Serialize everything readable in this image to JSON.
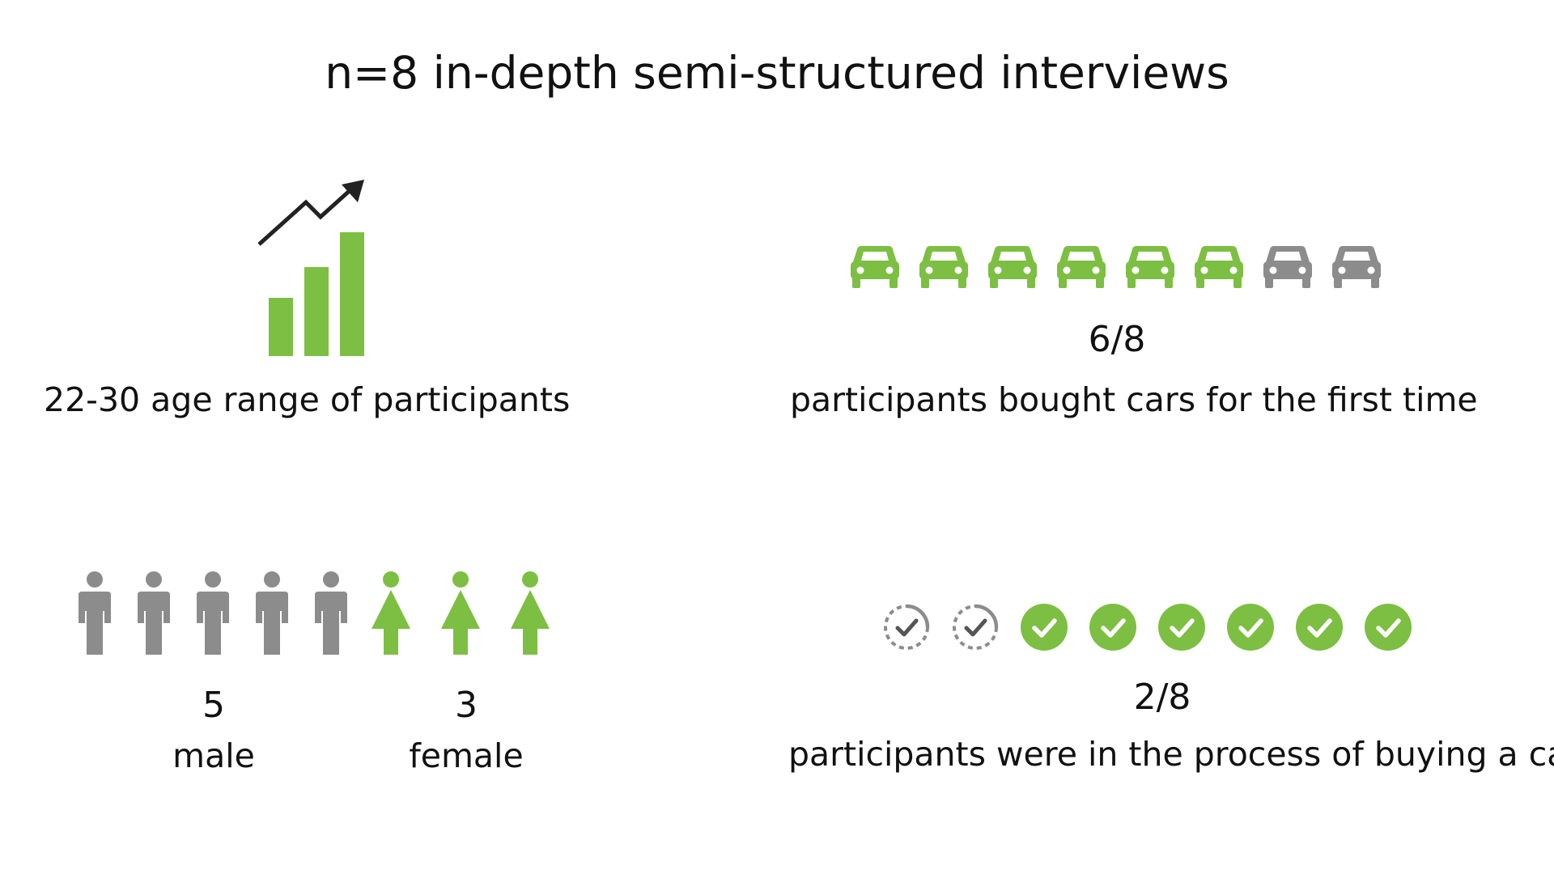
{
  "title": "n=8 in-depth semi-structured interviews",
  "colors": {
    "accent": "#7dbf42",
    "muted": "#8c8c8c",
    "dark": "#222222"
  },
  "age": {
    "icon": "growth-bar-chart-icon",
    "caption": "22-30 age range of participants"
  },
  "cars": {
    "icon": "car-icon",
    "total": 8,
    "first_time": 6,
    "fraction": "6/8",
    "caption": "participants bought cars for the first time"
  },
  "gender": {
    "male_icon": "male-person-icon",
    "female_icon": "female-person-icon",
    "male_count": "5",
    "male_label": "male",
    "female_count": "3",
    "female_label": "female"
  },
  "process": {
    "pending_icon": "pending-check-icon",
    "done_icon": "check-circle-icon",
    "total": 8,
    "in_process": 2,
    "fraction": "2/8",
    "caption": "participants were in the process of buying a car"
  }
}
